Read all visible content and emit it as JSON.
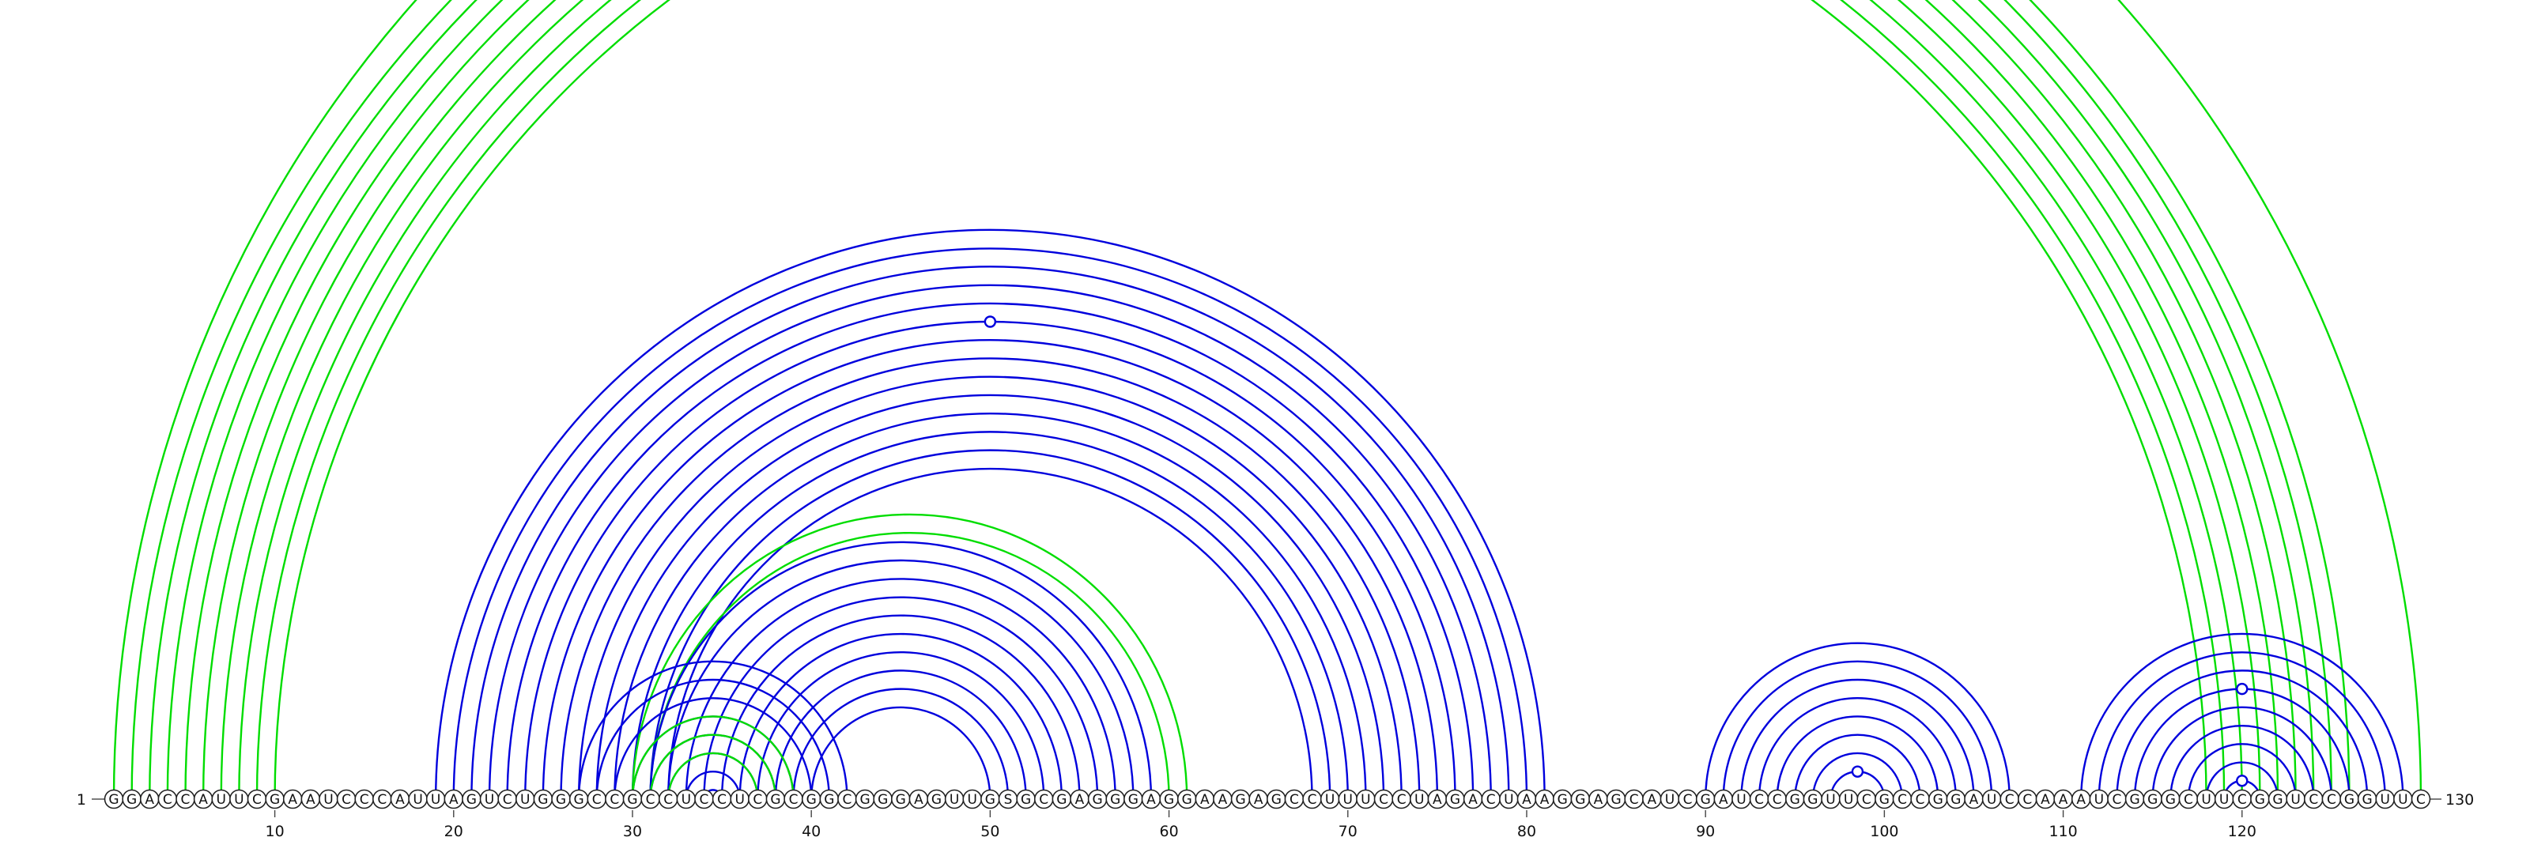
{
  "sequence": "GGACCAUUCGAAUCCCAUUAGUCUGGGCCGCCUCCUCGCGGCGGGAGUUGSGCGAGGGAGGAAGAGCCUUUCCUAGACUAAGGAGCAUCGAUCCGGUUCGCCGGAUCCAAAUCGGGCUUCGGUCCGGUUC",
  "start_label": "1",
  "end_label": "130",
  "tick_labels": [
    "10",
    "20",
    "30",
    "40",
    "50",
    "60",
    "70",
    "80",
    "90",
    "100",
    "110",
    "120"
  ],
  "colors": {
    "blue": "#0000dd",
    "green": "#00dd00"
  },
  "arc_groups": [
    {
      "color": "green",
      "start": 1,
      "end": 130,
      "count": 1
    },
    {
      "color": "green",
      "start": 2,
      "end": 126,
      "count": 9,
      "marker_level": 0
    },
    {
      "color": "blue",
      "start": 19,
      "end": 81,
      "count": 14,
      "marker_level": 5
    },
    {
      "color": "green",
      "start": 30,
      "end": 61,
      "count": 2
    },
    {
      "color": "blue",
      "start": 31,
      "end": 59,
      "count": 10
    },
    {
      "color": "blue",
      "start": 27,
      "end": 42,
      "count": 8
    },
    {
      "color": "green",
      "start": 30,
      "end": 39,
      "count": 3
    },
    {
      "color": "blue",
      "start": 90,
      "end": 107,
      "count": 8,
      "marker_level": 7
    },
    {
      "color": "blue",
      "start": 111,
      "end": 129,
      "count": 8,
      "marker_level": 3
    },
    {
      "color": "blue",
      "start": 119,
      "end": 121,
      "count": 1,
      "marker_level": 0
    }
  ]
}
